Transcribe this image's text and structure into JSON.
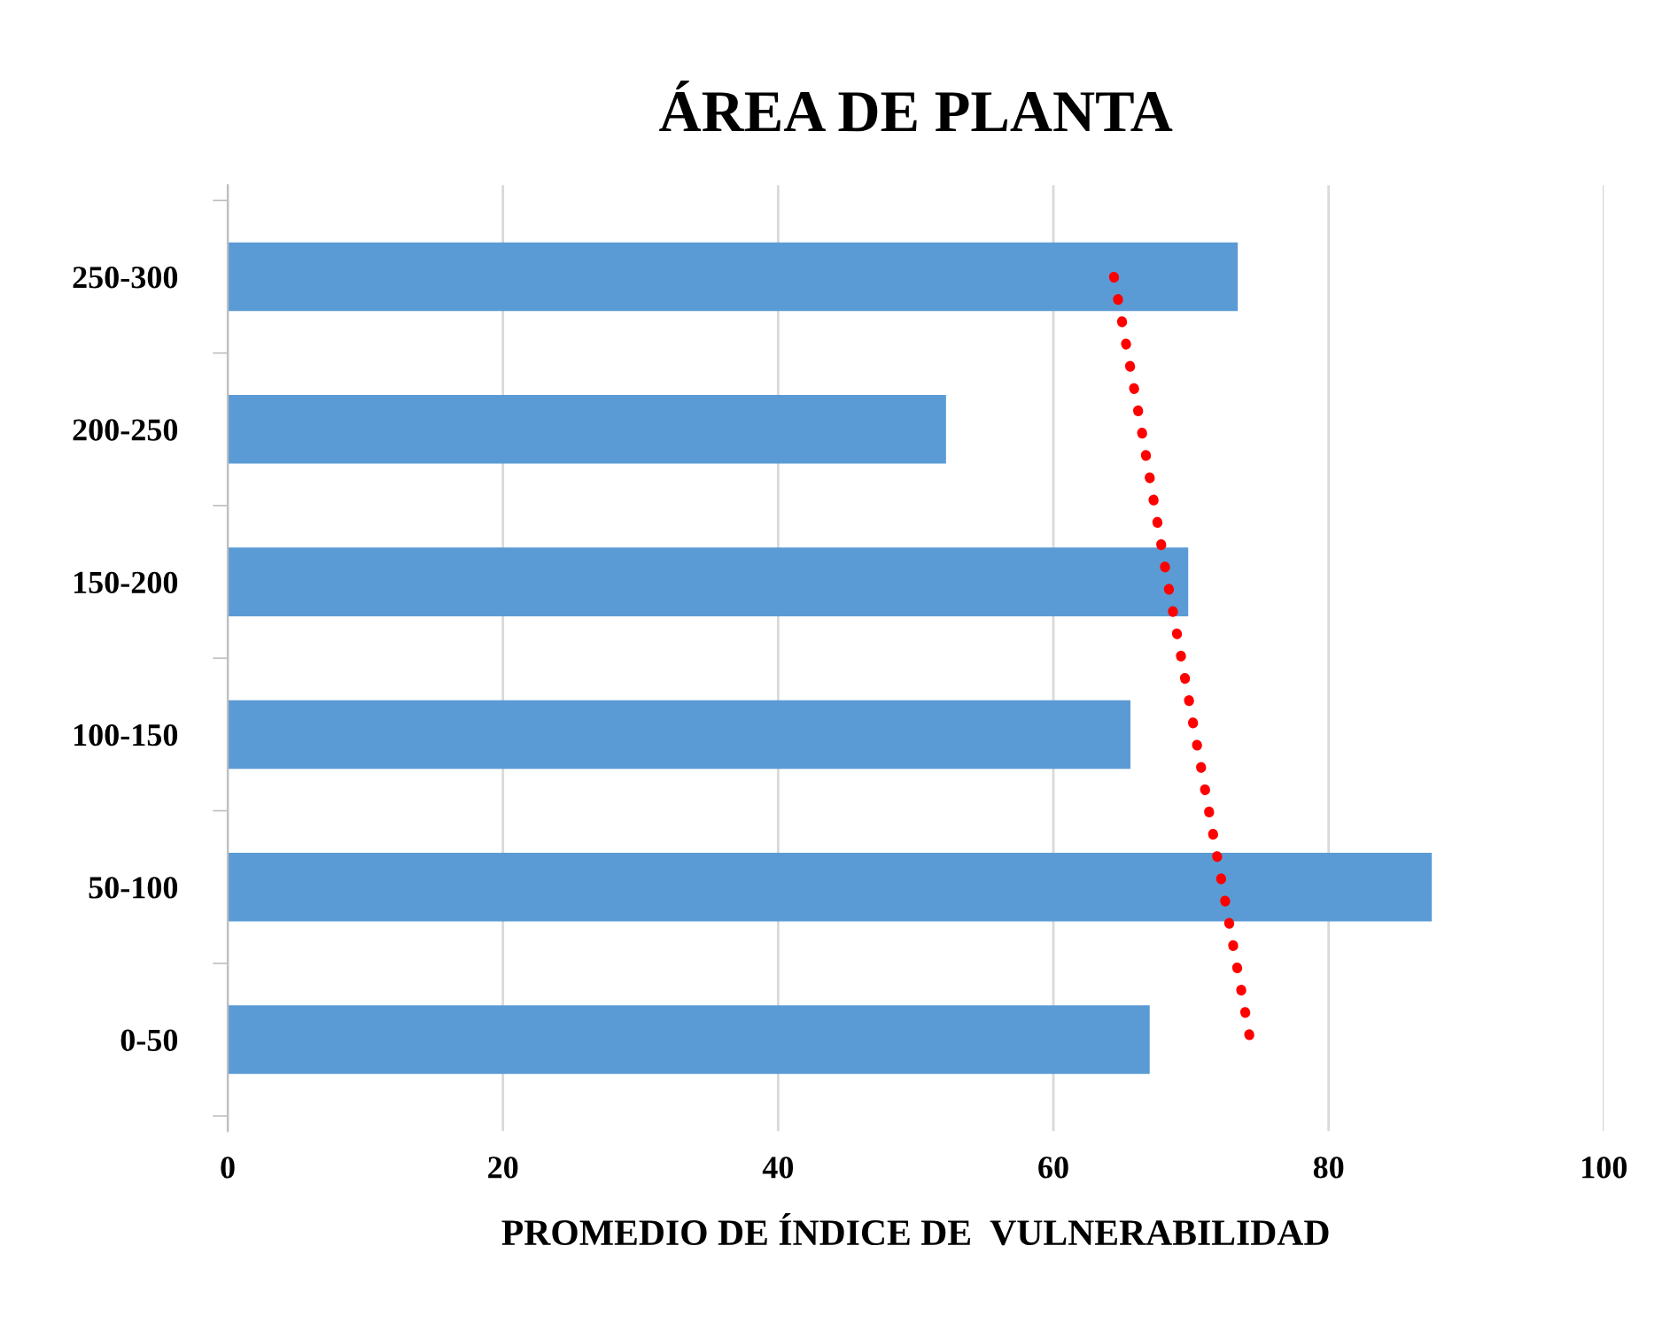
{
  "chart_data": {
    "type": "bar",
    "orientation": "horizontal",
    "title": "ÁREA DE PLANTA",
    "xlabel": "PROMEDIO DE ÍNDICE DE  VULNERABILIDAD",
    "categories": [
      "250-300",
      "200-250",
      "150-200",
      "100-150",
      "50-100",
      "0-50"
    ],
    "series": [
      {
        "color": "#5b9bd5",
        "values": [
          73.4,
          52.2,
          69.8,
          65.6,
          87.5,
          67.0
        ]
      },
      {
        "type": "line",
        "color": "#ff0000",
        "line_style": "dotted",
        "values": [
          64.4,
          66.4,
          68.3,
          70.3,
          72.3,
          74.3
        ]
      }
    ],
    "xlim": [
      0,
      100
    ],
    "xticks": [
      0,
      20,
      40,
      60,
      80,
      100
    ],
    "grid": "x"
  }
}
